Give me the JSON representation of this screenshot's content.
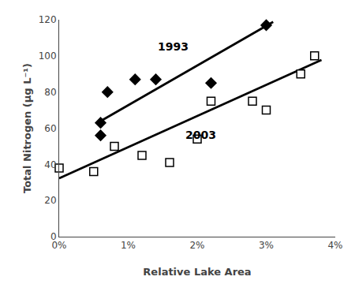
{
  "chart_data": {
    "type": "scatter",
    "xlabel": "Relative Lake Area",
    "ylabel": "Total Nitrogen (μg L⁻¹)",
    "xlim": [
      0,
      0.04
    ],
    "ylim": [
      0,
      120
    ],
    "xticks": [
      {
        "value": 0,
        "label": "0%"
      },
      {
        "value": 0.01,
        "label": "1%"
      },
      {
        "value": 0.02,
        "label": "2%"
      },
      {
        "value": 0.03,
        "label": "3%"
      },
      {
        "value": 0.04,
        "label": "4%"
      }
    ],
    "yticks": [
      0,
      20,
      40,
      60,
      80,
      100,
      120
    ],
    "grid": false,
    "series": [
      {
        "type": "line",
        "color": "black",
        "x": [
          0.006,
          0.031
        ],
        "values": [
          63.9404,
          118.7754
        ]
      },
      {
        "type": "line",
        "color": "black",
        "x": [
          0.0,
          0.038
        ],
        "values": [
          32.31,
          97.7384
        ]
      },
      {
        "type": "scatter",
        "marker": "diamond",
        "color": "black",
        "x": [
          0.006,
          0.006,
          0.007,
          0.011,
          0.014,
          0.022,
          0.03
        ],
        "values": [
          63,
          56,
          80,
          87,
          87,
          85,
          117
        ]
      },
      {
        "type": "scatter",
        "marker": "square-open",
        "color": "black",
        "x": [
          0.0,
          0.005,
          0.008,
          0.012,
          0.016,
          0.02,
          0.022,
          0.028,
          0.03,
          0.035,
          0.037
        ],
        "values": [
          38,
          36,
          50,
          45,
          41,
          54,
          75,
          75,
          70,
          90,
          100
        ]
      }
    ],
    "annotations": [
      {
        "text": "1993",
        "x": 0.014,
        "y": 101
      },
      {
        "text": "2003",
        "x": 0.018,
        "y": 52
      }
    ]
  }
}
